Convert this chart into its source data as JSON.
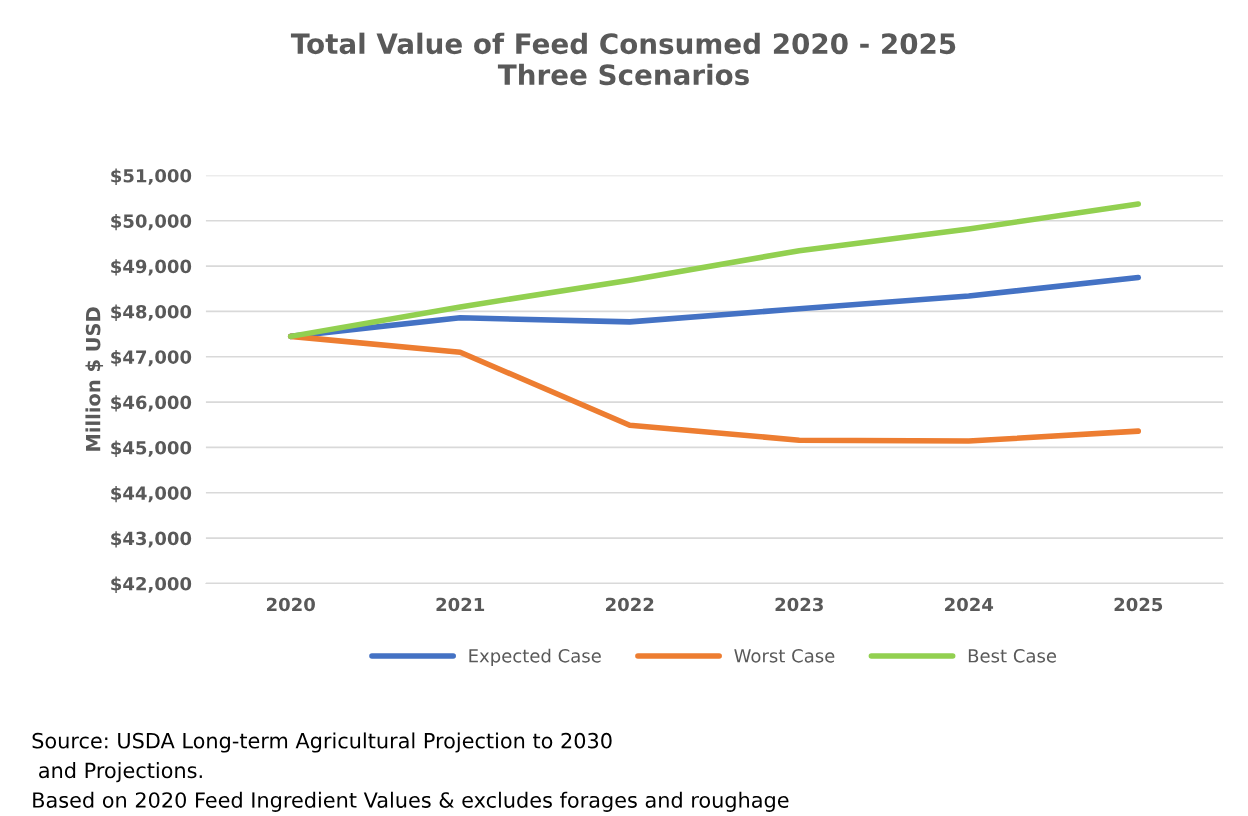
{
  "chart_data": {
    "type": "line",
    "title": "Total Value of Feed Consumed 2020 - 2025\nThree Scenarios",
    "ylabel": "Million $ USD",
    "categories": [
      "2020",
      "2021",
      "2022",
      "2023",
      "2024",
      "2025"
    ],
    "series": [
      {
        "name": "Expected Case",
        "color": "#4472c4",
        "values": [
          47450,
          47860,
          47770,
          48060,
          48340,
          48750
        ]
      },
      {
        "name": "Worst Case",
        "color": "#ed7d31",
        "values": [
          47450,
          47100,
          45490,
          45160,
          45140,
          45360
        ]
      },
      {
        "name": "Best Case",
        "color": "#92d050",
        "values": [
          47450,
          48100,
          48690,
          49340,
          49820,
          50370
        ]
      }
    ],
    "ylim": [
      42000,
      51000
    ],
    "yticks": [
      {
        "value": 42000,
        "label": "$42,000"
      },
      {
        "value": 43000,
        "label": "$43,000"
      },
      {
        "value": 44000,
        "label": "$44,000"
      },
      {
        "value": 45000,
        "label": "$45,000"
      },
      {
        "value": 46000,
        "label": "$46,000"
      },
      {
        "value": 47000,
        "label": "$47,000"
      },
      {
        "value": 48000,
        "label": "$48,000"
      },
      {
        "value": 49000,
        "label": "$49,000"
      },
      {
        "value": 50000,
        "label": "$50,000"
      },
      {
        "value": 51000,
        "label": "$51,000"
      }
    ],
    "grid": "y",
    "legend": "bottom",
    "marker": "none",
    "line_style": "solid",
    "annotations": [
      "Source: USDA Long-term Agricultural Projection to 2030\n and Projections.\nBased on 2020 Feed Ingredient Values & excludes forages and roughage"
    ]
  }
}
